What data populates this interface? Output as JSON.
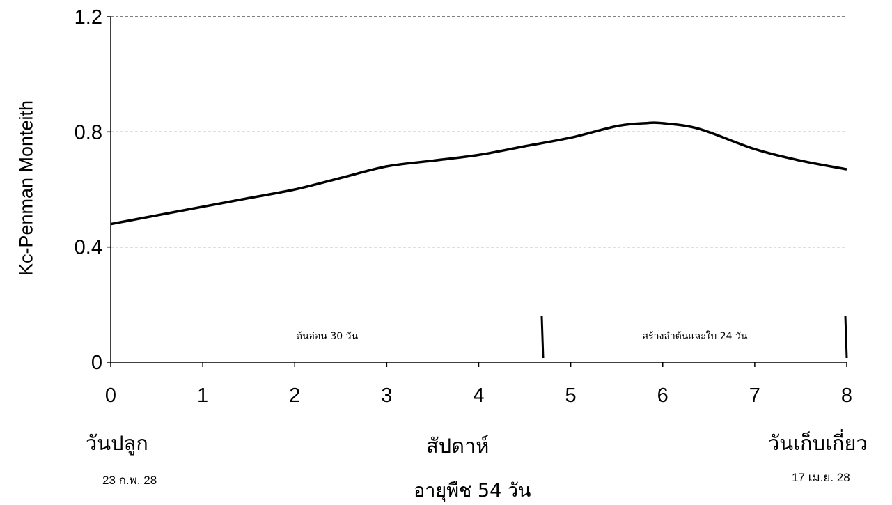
{
  "chart_data": {
    "type": "line",
    "ylabel": "Kc-Penman Monteith",
    "xlabel": "สัปดาห์",
    "xlim": [
      0,
      8
    ],
    "ylim": [
      0,
      1.2
    ],
    "x_ticks": [
      0,
      1,
      2,
      3,
      4,
      5,
      6,
      7,
      8
    ],
    "y_ticks": [
      0,
      0.4,
      0.8,
      1.2
    ],
    "y_tick_labels": [
      "0",
      "0.4",
      "0.8",
      "1.2"
    ],
    "grid": "horizontal dashed",
    "series": [
      {
        "color": "#000000",
        "x": [
          0,
          0.5,
          1,
          1.5,
          2,
          2.5,
          3,
          3.5,
          4,
          4.5,
          5,
          5.5,
          5.8,
          6,
          6.4,
          7,
          7.5,
          8
        ],
        "y": [
          0.48,
          0.51,
          0.54,
          0.57,
          0.6,
          0.64,
          0.68,
          0.7,
          0.72,
          0.75,
          0.78,
          0.82,
          0.83,
          0.83,
          0.81,
          0.74,
          0.7,
          0.67
        ]
      }
    ],
    "stage_markers": [
      4.7,
      8.0
    ],
    "stages": [
      {
        "label": "ต้นอ่อน 30 วัน",
        "x_center": 2.35
      },
      {
        "label": "สร้างลำต้นและใบ 24 วัน",
        "x_center": 6.35
      }
    ],
    "annotations": {
      "planting": "วันปลูก",
      "planting_date": "23 ก.พ. 28",
      "harvest": "วันเก็บเกี่ยว",
      "harvest_date": "17 เม.ย. 28",
      "crop_age": "อายุพืช 54 วัน"
    }
  }
}
